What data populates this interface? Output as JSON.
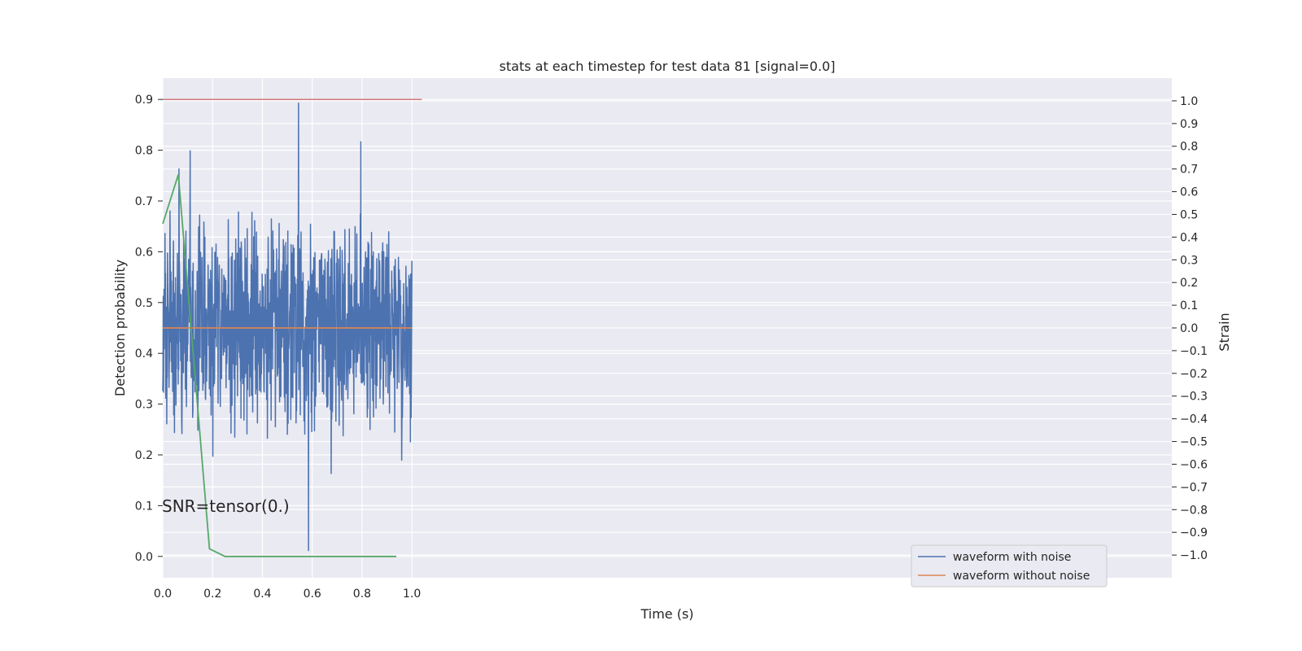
{
  "chart_data": {
    "type": "line",
    "title": "stats at each timestep for test data 81 [signal=0.0]",
    "xlabel": "Time (s)",
    "ylabel_left": "Detection probability",
    "ylabel_right": "Strain",
    "xlim": [
      0.0,
      4.05
    ],
    "ylim_left": [
      -0.042,
      0.942
    ],
    "ylim_right": [
      -1.1,
      1.1
    ],
    "x_ticks": [
      "0.0",
      "0.2",
      "0.4",
      "0.6",
      "0.8",
      "1.0"
    ],
    "x_tick_values": [
      0.0,
      0.2,
      0.4,
      0.6,
      0.8,
      1.0
    ],
    "y_ticks_left": [
      "0.0",
      "0.1",
      "0.2",
      "0.3",
      "0.4",
      "0.5",
      "0.6",
      "0.7",
      "0.8",
      "0.9"
    ],
    "y_tick_values_left": [
      0.0,
      0.1,
      0.2,
      0.3,
      0.4,
      0.5,
      0.6,
      0.7,
      0.8,
      0.9
    ],
    "y_ticks_right": [
      "1.0",
      "0.9",
      "0.8",
      "0.7",
      "0.6",
      "0.5",
      "0.4",
      "0.3",
      "0.2",
      "0.1",
      "0.0",
      "−0.1",
      "−0.2",
      "−0.3",
      "−0.4",
      "−0.5",
      "−0.6",
      "−0.7",
      "−0.8",
      "−0.9",
      "−1.0"
    ],
    "y_tick_values_right": [
      1.0,
      0.9,
      0.8,
      0.7,
      0.6,
      0.5,
      0.4,
      0.3,
      0.2,
      0.1,
      0.0,
      -0.1,
      -0.2,
      -0.3,
      -0.4,
      -0.5,
      -0.6,
      -0.7,
      -0.8,
      -0.9,
      -1.0
    ],
    "grid": true,
    "annotation": "SNR=tensor(0.)",
    "legend": {
      "placement": "lower-right",
      "entries": [
        {
          "label": "waveform with noise",
          "color": "#4c72b0"
        },
        {
          "label": "waveform without noise",
          "color": "#dd8452"
        }
      ]
    },
    "series": [
      {
        "axis": "right",
        "color": "#4c72b0",
        "x": [
          0.0,
          1.0
        ],
        "noise": {
          "samples": 1000,
          "max_abs": 0.65
        },
        "spikes": [
          {
            "x": 0.545,
            "y": 0.99
          },
          {
            "x": 0.585,
            "y": -0.98
          },
          {
            "x": 0.795,
            "y": 0.82
          },
          {
            "x": 0.065,
            "y": 0.7
          },
          {
            "x": 0.11,
            "y": 0.78
          }
        ]
      },
      {
        "axis": "right",
        "color": "#dd8452",
        "x": [
          0.0,
          1.0
        ],
        "y": [
          0.0,
          0.0
        ]
      },
      {
        "axis": "left",
        "color": "#55a868",
        "x": [
          0.0,
          0.0625,
          0.1875,
          0.25,
          0.9375
        ],
        "y": [
          0.655,
          0.752,
          0.015,
          0.0,
          0.0
        ]
      },
      {
        "axis": "left",
        "color": "#c44e52",
        "x": [
          0.0,
          1.04
        ],
        "y": [
          0.9,
          0.9
        ]
      }
    ]
  }
}
